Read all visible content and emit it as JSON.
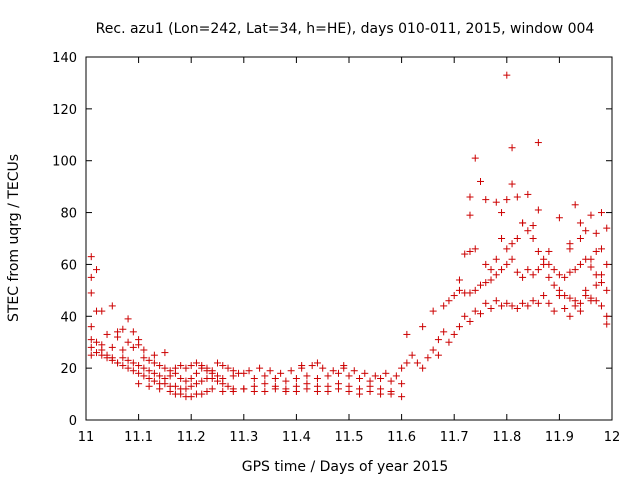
{
  "chart_data": {
    "type": "scatter",
    "title": "Rec. azu1 (Lon=242, Lat=34, h=HE), days 010-011, 2015, window 004",
    "xlabel": "GPS time / Days of year 2015",
    "ylabel": "STEC from uqrg / TECUs",
    "xlim": [
      11.0,
      12.0
    ],
    "ylim": [
      0,
      140
    ],
    "x_ticks": [
      11.0,
      11.1,
      11.2,
      11.3,
      11.4,
      11.5,
      11.6,
      11.7,
      11.8,
      11.9,
      12.0
    ],
    "x_tick_labels": [
      "11",
      "11.1",
      "11.2",
      "11.3",
      "11.4",
      "11.5",
      "11.6",
      "11.7",
      "11.8",
      "11.9",
      "12"
    ],
    "y_ticks": [
      0,
      20,
      40,
      60,
      80,
      100,
      120,
      140
    ],
    "y_tick_labels": [
      "0",
      "20",
      "40",
      "60",
      "80",
      "100",
      "120",
      "140"
    ],
    "grid": false,
    "marker": "+",
    "marker_color": "#cc0000",
    "series": [
      {
        "points": [
          [
            11.01,
            63
          ],
          [
            11.01,
            55
          ],
          [
            11.01,
            49
          ],
          [
            11.01,
            36
          ],
          [
            11.01,
            31
          ],
          [
            11.01,
            25
          ],
          [
            11.02,
            58
          ],
          [
            11.02,
            42
          ],
          [
            11.03,
            42
          ],
          [
            11.04,
            33
          ],
          [
            11.05,
            44
          ],
          [
            11.06,
            34
          ],
          [
            11.07,
            35
          ],
          [
            11.08,
            39
          ],
          [
            11.09,
            34
          ],
          [
            11.1,
            31
          ],
          [
            11.02,
            30
          ],
          [
            11.03,
            27
          ],
          [
            11.04,
            25
          ],
          [
            11.05,
            24
          ],
          [
            11.06,
            22
          ],
          [
            11.07,
            21
          ],
          [
            11.08,
            20
          ],
          [
            11.09,
            19
          ],
          [
            11.1,
            18
          ],
          [
            11.11,
            17
          ],
          [
            11.12,
            16
          ],
          [
            11.13,
            15
          ],
          [
            11.14,
            14
          ],
          [
            11.15,
            14
          ],
          [
            11.16,
            13
          ],
          [
            11.17,
            13
          ],
          [
            11.18,
            12
          ],
          [
            11.19,
            12
          ],
          [
            11.2,
            13
          ],
          [
            11.21,
            14
          ],
          [
            11.22,
            15
          ],
          [
            11.23,
            16
          ],
          [
            11.24,
            16
          ],
          [
            11.25,
            15
          ],
          [
            11.26,
            14
          ],
          [
            11.27,
            13
          ],
          [
            11.28,
            12
          ],
          [
            11.3,
            12
          ],
          [
            11.32,
            13
          ],
          [
            11.34,
            14
          ],
          [
            11.36,
            13
          ],
          [
            11.38,
            12
          ],
          [
            11.4,
            13
          ],
          [
            11.42,
            14
          ],
          [
            11.44,
            13
          ],
          [
            11.46,
            13
          ],
          [
            11.48,
            14
          ],
          [
            11.5,
            13
          ],
          [
            11.52,
            12
          ],
          [
            11.54,
            13
          ],
          [
            11.56,
            12
          ],
          [
            11.58,
            11
          ],
          [
            11.02,
            26
          ],
          [
            11.03,
            25
          ],
          [
            11.04,
            24
          ],
          [
            11.05,
            23
          ],
          [
            11.06,
            22
          ],
          [
            11.07,
            24
          ],
          [
            11.08,
            23
          ],
          [
            11.09,
            22
          ],
          [
            11.1,
            21
          ],
          [
            11.11,
            20
          ],
          [
            11.12,
            19
          ],
          [
            11.13,
            18
          ],
          [
            11.14,
            17
          ],
          [
            11.15,
            16
          ],
          [
            11.16,
            17
          ],
          [
            11.17,
            18
          ],
          [
            11.18,
            16
          ],
          [
            11.19,
            15
          ],
          [
            11.2,
            16
          ],
          [
            11.21,
            18
          ],
          [
            11.22,
            20
          ],
          [
            11.23,
            19
          ],
          [
            11.24,
            18
          ],
          [
            11.25,
            17
          ],
          [
            11.26,
            16
          ],
          [
            11.28,
            17
          ],
          [
            11.3,
            18
          ],
          [
            11.32,
            16
          ],
          [
            11.34,
            17
          ],
          [
            11.36,
            16
          ],
          [
            11.38,
            15
          ],
          [
            11.4,
            16
          ],
          [
            11.42,
            17
          ],
          [
            11.44,
            16
          ],
          [
            11.46,
            17
          ],
          [
            11.48,
            18
          ],
          [
            11.5,
            17
          ],
          [
            11.52,
            16
          ],
          [
            11.54,
            15
          ],
          [
            11.56,
            16
          ],
          [
            11.58,
            15
          ],
          [
            11.6,
            14
          ],
          [
            11.01,
            28
          ],
          [
            11.03,
            29
          ],
          [
            11.05,
            28
          ],
          [
            11.07,
            27
          ],
          [
            11.09,
            28
          ],
          [
            11.11,
            27
          ],
          [
            11.06,
            32
          ],
          [
            11.08,
            30
          ],
          [
            11.1,
            29
          ],
          [
            11.11,
            24
          ],
          [
            11.12,
            23
          ],
          [
            11.13,
            22
          ],
          [
            11.14,
            21
          ],
          [
            11.15,
            20
          ],
          [
            11.16,
            19
          ],
          [
            11.17,
            20
          ],
          [
            11.18,
            21
          ],
          [
            11.19,
            20
          ],
          [
            11.2,
            21
          ],
          [
            11.21,
            22
          ],
          [
            11.22,
            21
          ],
          [
            11.23,
            20
          ],
          [
            11.24,
            19
          ],
          [
            11.25,
            22
          ],
          [
            11.26,
            21
          ],
          [
            11.27,
            20
          ],
          [
            11.28,
            19
          ],
          [
            11.29,
            18
          ],
          [
            11.31,
            19
          ],
          [
            11.33,
            20
          ],
          [
            11.35,
            19
          ],
          [
            11.37,
            18
          ],
          [
            11.39,
            19
          ],
          [
            11.41,
            20
          ],
          [
            11.43,
            21
          ],
          [
            11.45,
            20
          ],
          [
            11.47,
            19
          ],
          [
            11.49,
            20
          ],
          [
            11.51,
            19
          ],
          [
            11.53,
            18
          ],
          [
            11.55,
            17
          ],
          [
            11.57,
            18
          ],
          [
            11.59,
            17
          ],
          [
            11.1,
            14
          ],
          [
            11.12,
            13
          ],
          [
            11.14,
            12
          ],
          [
            11.16,
            11
          ],
          [
            11.17,
            10
          ],
          [
            11.18,
            10
          ],
          [
            11.19,
            9
          ],
          [
            11.2,
            9
          ],
          [
            11.21,
            10
          ],
          [
            11.22,
            10
          ],
          [
            11.23,
            11
          ],
          [
            11.24,
            12
          ],
          [
            11.26,
            11
          ],
          [
            11.28,
            11
          ],
          [
            11.3,
            12
          ],
          [
            11.32,
            11
          ],
          [
            11.34,
            11
          ],
          [
            11.36,
            12
          ],
          [
            11.38,
            11
          ],
          [
            11.4,
            11
          ],
          [
            11.42,
            12
          ],
          [
            11.44,
            11
          ],
          [
            11.46,
            11
          ],
          [
            11.48,
            12
          ],
          [
            11.5,
            11
          ],
          [
            11.52,
            10
          ],
          [
            11.54,
            11
          ],
          [
            11.56,
            10
          ],
          [
            11.58,
            10
          ],
          [
            11.6,
            9
          ],
          [
            11.13,
            25
          ],
          [
            11.15,
            26
          ],
          [
            11.41,
            21
          ],
          [
            11.44,
            22
          ],
          [
            11.49,
            21
          ],
          [
            11.6,
            20
          ],
          [
            11.61,
            22
          ],
          [
            11.62,
            25
          ],
          [
            11.63,
            22
          ],
          [
            11.64,
            20
          ],
          [
            11.65,
            24
          ],
          [
            11.66,
            27
          ],
          [
            11.67,
            31
          ],
          [
            11.67,
            25
          ],
          [
            11.68,
            34
          ],
          [
            11.69,
            30
          ],
          [
            11.7,
            33
          ],
          [
            11.71,
            36
          ],
          [
            11.72,
            40
          ],
          [
            11.73,
            38
          ],
          [
            11.74,
            42
          ],
          [
            11.75,
            41
          ],
          [
            11.76,
            45
          ],
          [
            11.77,
            43
          ],
          [
            11.78,
            46
          ],
          [
            11.79,
            44
          ],
          [
            11.8,
            45
          ],
          [
            11.81,
            44
          ],
          [
            11.82,
            43
          ],
          [
            11.83,
            45
          ],
          [
            11.84,
            44
          ],
          [
            11.85,
            46
          ],
          [
            11.86,
            45
          ],
          [
            11.87,
            48
          ],
          [
            11.61,
            33
          ],
          [
            11.64,
            36
          ],
          [
            11.66,
            42
          ],
          [
            11.68,
            44
          ],
          [
            11.69,
            46
          ],
          [
            11.7,
            48
          ],
          [
            11.71,
            50
          ],
          [
            11.72,
            49
          ],
          [
            11.73,
            49
          ],
          [
            11.74,
            50
          ],
          [
            11.75,
            52
          ],
          [
            11.76,
            53
          ],
          [
            11.77,
            54
          ],
          [
            11.78,
            56
          ],
          [
            11.79,
            58
          ],
          [
            11.8,
            60
          ],
          [
            11.81,
            62
          ],
          [
            11.82,
            57
          ],
          [
            11.83,
            55
          ],
          [
            11.84,
            58
          ],
          [
            11.85,
            56
          ],
          [
            11.86,
            58
          ],
          [
            11.87,
            60
          ],
          [
            11.88,
            55
          ],
          [
            11.89,
            52
          ],
          [
            11.9,
            50
          ],
          [
            11.91,
            48
          ],
          [
            11.92,
            47
          ],
          [
            11.93,
            46
          ],
          [
            11.94,
            45
          ],
          [
            11.95,
            48
          ],
          [
            11.96,
            47
          ],
          [
            11.97,
            46
          ],
          [
            11.98,
            44
          ],
          [
            11.99,
            40
          ],
          [
            11.71,
            54
          ],
          [
            11.72,
            64
          ],
          [
            11.73,
            65
          ],
          [
            11.74,
            66
          ],
          [
            11.76,
            60
          ],
          [
            11.77,
            58
          ],
          [
            11.78,
            62
          ],
          [
            11.79,
            70
          ],
          [
            11.8,
            66
          ],
          [
            11.81,
            68
          ],
          [
            11.82,
            70
          ],
          [
            11.83,
            76
          ],
          [
            11.84,
            73
          ],
          [
            11.85,
            70
          ],
          [
            11.86,
            65
          ],
          [
            11.87,
            62
          ],
          [
            11.88,
            60
          ],
          [
            11.89,
            58
          ],
          [
            11.9,
            56
          ],
          [
            11.91,
            55
          ],
          [
            11.92,
            57
          ],
          [
            11.93,
            58
          ],
          [
            11.94,
            60
          ],
          [
            11.95,
            62
          ],
          [
            11.96,
            59
          ],
          [
            11.97,
            56
          ],
          [
            11.98,
            53
          ],
          [
            11.99,
            50
          ],
          [
            11.73,
            79
          ],
          [
            11.73,
            86
          ],
          [
            11.74,
            101
          ],
          [
            11.75,
            92
          ],
          [
            11.76,
            85
          ],
          [
            11.78,
            84
          ],
          [
            11.79,
            80
          ],
          [
            11.8,
            85
          ],
          [
            11.8,
            133
          ],
          [
            11.81,
            91
          ],
          [
            11.81,
            105
          ],
          [
            11.82,
            86
          ],
          [
            11.83,
            76
          ],
          [
            11.84,
            87
          ],
          [
            11.85,
            75
          ],
          [
            11.86,
            107
          ],
          [
            11.86,
            81
          ],
          [
            11.88,
            65
          ],
          [
            11.9,
            78
          ],
          [
            11.92,
            68
          ],
          [
            11.93,
            83
          ],
          [
            11.94,
            76
          ],
          [
            11.95,
            73
          ],
          [
            11.96,
            79
          ],
          [
            11.97,
            72
          ],
          [
            11.98,
            80
          ],
          [
            11.99,
            74
          ],
          [
            11.99,
            60
          ],
          [
            11.88,
            45
          ],
          [
            11.89,
            42
          ],
          [
            11.9,
            48
          ],
          [
            11.91,
            43
          ],
          [
            11.92,
            40
          ],
          [
            11.93,
            44
          ],
          [
            11.94,
            42
          ],
          [
            11.95,
            50
          ],
          [
            11.96,
            46
          ],
          [
            11.97,
            52
          ],
          [
            11.98,
            56
          ],
          [
            11.99,
            37
          ],
          [
            11.97,
            65
          ],
          [
            11.98,
            66
          ],
          [
            11.96,
            62
          ],
          [
            11.94,
            70
          ],
          [
            11.92,
            66
          ]
        ]
      }
    ]
  }
}
